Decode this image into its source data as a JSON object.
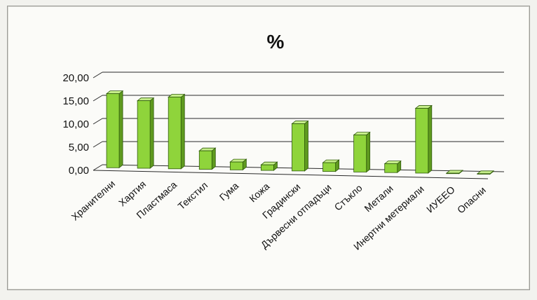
{
  "chart_data": {
    "type": "bar",
    "title": "%",
    "categories": [
      "Хранителни",
      "Хартия",
      "Пластмаса",
      "Текстил",
      "Гума",
      "Кожа",
      "Градински",
      "Дървесни отпадъци",
      "Стъкло",
      "Метали",
      "Инертни метериали",
      "ИУЕЕО",
      "Опасни"
    ],
    "values": [
      16.0,
      14.6,
      15.5,
      4.0,
      1.7,
      1.2,
      10.2,
      1.9,
      8.0,
      1.9,
      14.0,
      0.1,
      0.1
    ],
    "yticks": [
      "0,00",
      "5,00",
      "10,00",
      "15,00",
      "20,00"
    ],
    "ylim": [
      0,
      20
    ],
    "grid": true,
    "legend": "none",
    "colors": {
      "bar_front": "#8fd43b",
      "bar_side": "#5f9a1f",
      "bar_top": "#c6ee8a",
      "bar_edge": "#2f5a0a",
      "grid": "#2a2a2a"
    }
  }
}
